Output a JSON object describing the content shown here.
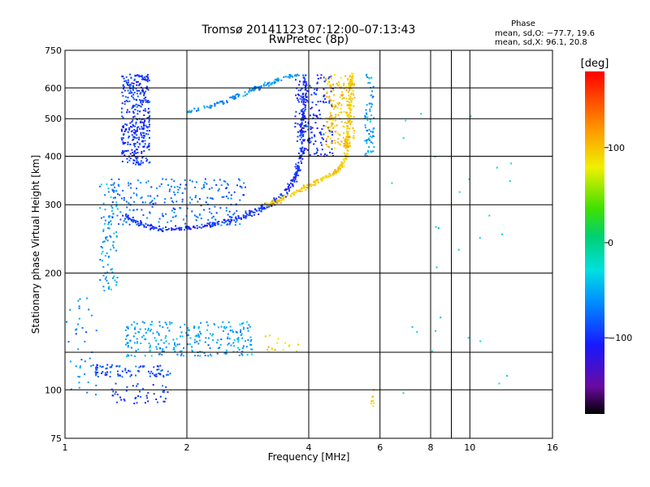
{
  "chart_data": {
    "type": "scatter",
    "title": "Tromsø 20141123 07:12:00–07:13:43",
    "subtitle": "RwPretec (8p)",
    "xlabel": "Frequency [MHz]",
    "ylabel": "Stationary phase Virtual Height [km]",
    "x_scale": "log",
    "y_scale": "log",
    "xlim": [
      1,
      16
    ],
    "ylim": [
      75,
      750
    ],
    "x_ticks": [
      1,
      2,
      4,
      6,
      8,
      10,
      16
    ],
    "x_minor_grid": [
      9
    ],
    "y_ticks": [
      75,
      100,
      200,
      300,
      400,
      500,
      600,
      750
    ],
    "y_minor_grid": [
      125
    ],
    "grid": true,
    "legend": {
      "title": "Phase",
      "line_o": "mean, sd,O: −77.7, 19.6",
      "line_x": "mean, sd,X:  96.1, 20.8"
    },
    "colorbar": {
      "unit": "[deg]",
      "range": [
        -180,
        180
      ],
      "ticks": [
        100,
        0,
        -100
      ]
    },
    "clusters": [
      {
        "name": "F-region O-trace",
        "type": "curve",
        "points": [
          [
            1.4,
            282
          ],
          [
            1.55,
            266
          ],
          [
            1.75,
            259
          ],
          [
            2.0,
            261
          ],
          [
            2.3,
            266
          ],
          [
            2.7,
            277
          ],
          [
            3.0,
            290
          ],
          [
            3.2,
            300
          ],
          [
            3.5,
            322
          ],
          [
            3.7,
            350
          ],
          [
            3.8,
            380
          ],
          [
            3.85,
            430
          ],
          [
            3.88,
            500
          ],
          [
            3.9,
            560
          ],
          [
            3.92,
            640
          ]
        ],
        "phase": -100,
        "spread": 0.04,
        "count": 420
      },
      {
        "name": "F-region X-trace",
        "type": "curve",
        "points": [
          [
            3.1,
            297
          ],
          [
            3.4,
            309
          ],
          [
            3.8,
            327
          ],
          [
            4.2,
            345
          ],
          [
            4.6,
            360
          ],
          [
            4.8,
            375
          ],
          [
            4.95,
            400
          ],
          [
            5.0,
            450
          ],
          [
            5.02,
            520
          ],
          [
            5.05,
            600
          ],
          [
            5.1,
            650
          ]
        ],
        "phase": 95,
        "spread": 0.035,
        "count": 300
      },
      {
        "name": "Upper F multi-hop",
        "type": "curve",
        "points": [
          [
            2.0,
            520
          ],
          [
            2.3,
            540
          ],
          [
            2.6,
            565
          ],
          [
            2.9,
            592
          ],
          [
            3.2,
            615
          ],
          [
            3.5,
            640
          ],
          [
            3.8,
            650
          ]
        ],
        "phase": -60,
        "spread": 0.03,
        "count": 140
      },
      {
        "name": "Spread F low band",
        "type": "box",
        "f": [
          1.38,
          1.62
        ],
        "h": [
          380,
          650
        ],
        "phase": -95,
        "count": 360
      },
      {
        "name": "Spread F mid",
        "type": "box",
        "f": [
          1.3,
          2.8
        ],
        "h": [
          265,
          350
        ],
        "phase": -75,
        "count": 240
      },
      {
        "name": "Spread F upper",
        "type": "box",
        "f": [
          3.7,
          4.6
        ],
        "h": [
          400,
          650
        ],
        "phase": -100,
        "count": 180
      },
      {
        "name": "Spread F X upper",
        "type": "box",
        "f": [
          4.4,
          5.2
        ],
        "h": [
          420,
          650
        ],
        "phase": 100,
        "count": 170
      },
      {
        "name": "Spread F right edge",
        "type": "box",
        "f": [
          5.5,
          5.8
        ],
        "h": [
          400,
          650
        ],
        "phase": -55,
        "count": 70
      },
      {
        "name": "Low-frequency vertical streak",
        "type": "box",
        "f": [
          1.22,
          1.35
        ],
        "h": [
          180,
          340
        ],
        "phase": -55,
        "count": 90
      },
      {
        "name": "E-region trace",
        "type": "box",
        "f": [
          1.4,
          2.9
        ],
        "h": [
          122,
          150
        ],
        "phase": -55,
        "count": 260
      },
      {
        "name": "E-region X",
        "type": "box",
        "f": [
          3.1,
          3.8
        ],
        "h": [
          125,
          140
        ],
        "phase": 95,
        "count": 16
      },
      {
        "name": "Sporadic E low",
        "type": "box",
        "f": [
          1.18,
          1.85
        ],
        "h": [
          108,
          116
        ],
        "phase": -90,
        "count": 90
      },
      {
        "name": "Low echoes",
        "type": "box",
        "f": [
          1.3,
          1.8
        ],
        "h": [
          92,
          104
        ],
        "phase": -95,
        "count": 45
      },
      {
        "name": "Far-left scatter",
        "type": "box",
        "f": [
          1.0,
          1.2
        ],
        "h": [
          95,
          180
        ],
        "phase": -60,
        "count": 40
      },
      {
        "name": "Isolated high-frequency echoes",
        "type": "box",
        "f": [
          6.0,
          13.0
        ],
        "h": [
          95,
          610
        ],
        "phase": -30,
        "count": 28
      },
      {
        "name": "High-frequency low echoes",
        "type": "box",
        "f": [
          5.7,
          5.8
        ],
        "h": [
          90,
          100
        ],
        "phase": 95,
        "count": 8
      }
    ]
  }
}
